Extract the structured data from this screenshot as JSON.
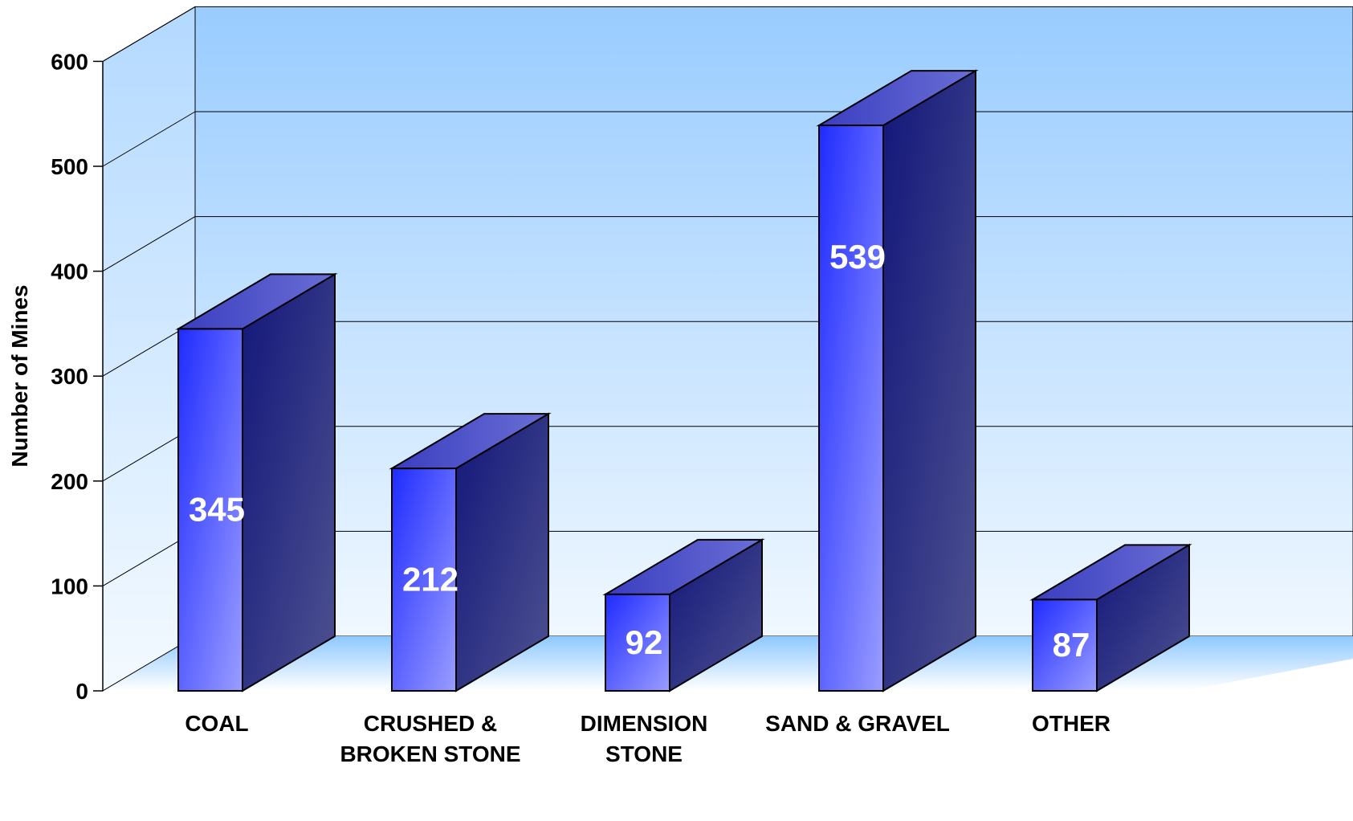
{
  "chart_data": {
    "type": "bar",
    "style": "3d",
    "categories": [
      [
        "COAL"
      ],
      [
        "CRUSHED &",
        "BROKEN STONE"
      ],
      [
        "DIMENSION",
        "STONE"
      ],
      [
        "SAND & GRAVEL"
      ],
      [
        "OTHER"
      ]
    ],
    "values": [
      345,
      212,
      92,
      539,
      87
    ],
    "data_labels": [
      "345",
      "212",
      "92",
      "539",
      "87"
    ],
    "ylabel": "Number of Mines",
    "xlabel": "",
    "title": "",
    "ylim": [
      0,
      600
    ],
    "yticks": [
      0,
      100,
      200,
      300,
      400,
      500,
      600
    ],
    "grid": true,
    "legend": "none",
    "colors": {
      "wall_top": "#99ccff",
      "wall_bottom": "#f0f8ff",
      "bar_front_light": "#1f2bff",
      "bar_front_dark": "#9a9dff",
      "bar_top": "#5a5ec8",
      "bar_side": "#1a1d75"
    }
  }
}
